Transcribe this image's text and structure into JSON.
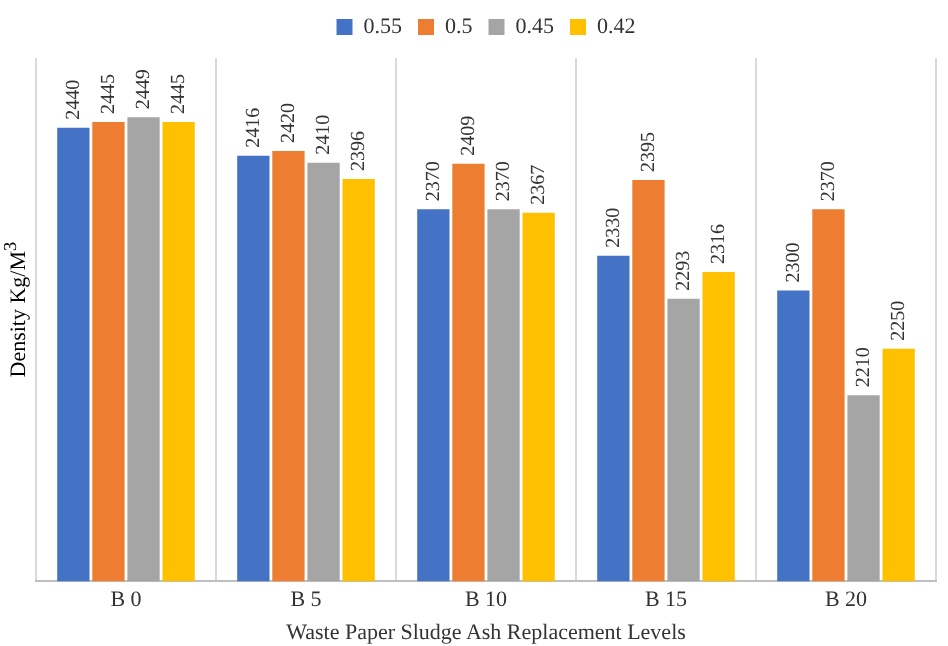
{
  "chart_data": {
    "type": "bar",
    "xlabel": "Waste Paper Sludge Ash Replacement Levels",
    "ylabel": "Density Kg/M$^{3}$",
    "categories": [
      "B 0",
      "B 5",
      "B 10",
      "B 15",
      "B 20"
    ],
    "series": [
      {
        "name": "0.55",
        "color": "#4472c4",
        "values": [
          2440,
          2416,
          2370,
          2330,
          2300
        ]
      },
      {
        "name": "0.5",
        "color": "#ed7d31",
        "values": [
          2445,
          2420,
          2409,
          2395,
          2370
        ]
      },
      {
        "name": "0.45",
        "color": "#a5a5a5",
        "values": [
          2449,
          2410,
          2370,
          2293,
          2210
        ]
      },
      {
        "name": "0.42",
        "color": "#ffc000",
        "values": [
          2445,
          2396,
          2367,
          2316,
          2250
        ]
      }
    ],
    "ylim": [
      2050,
      2500
    ],
    "tick_labels": "x",
    "grid": "x",
    "legend": "top",
    "data_labels": true
  }
}
